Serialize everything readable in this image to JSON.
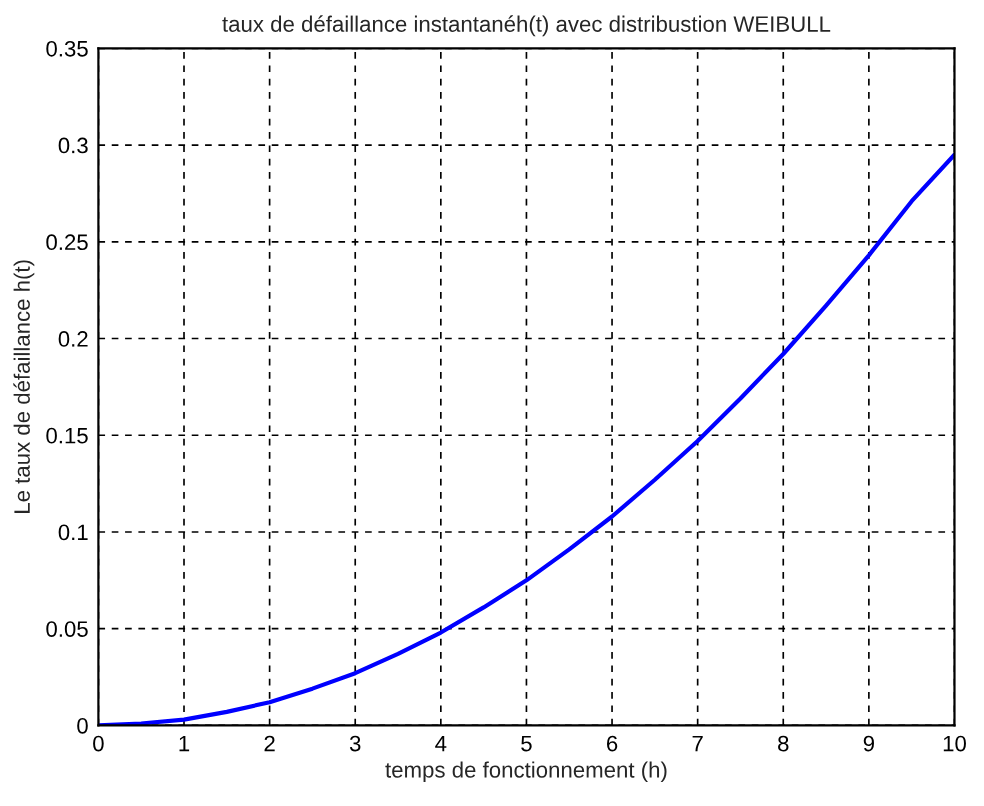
{
  "chart_data": {
    "type": "line",
    "title": "taux de défaillance instantanéh(t) avec distribustion WEIBULL",
    "xlabel": "temps de fonctionnement (h)",
    "ylabel": "Le taux de défaillance h(t)",
    "x": [
      0,
      0.5,
      1,
      1.5,
      2,
      2.5,
      3,
      3.5,
      4,
      4.5,
      5,
      5.5,
      6,
      6.5,
      7,
      7.5,
      8,
      8.5,
      9,
      9.5,
      10
    ],
    "series": [
      {
        "color": "#0000ff",
        "values": [
          0,
          0.001,
          0.003,
          0.007,
          0.012,
          0.019,
          0.027,
          0.037,
          0.048,
          0.061,
          0.075,
          0.091,
          0.108,
          0.127,
          0.147,
          0.169,
          0.192,
          0.217,
          0.243,
          0.271,
          0.295
        ]
      }
    ],
    "xlim": [
      0,
      10
    ],
    "ylim": [
      0,
      0.35
    ],
    "xticks": [
      0,
      1,
      2,
      3,
      4,
      5,
      6,
      7,
      8,
      9,
      10
    ],
    "yticks": [
      0,
      0.05,
      0.1,
      0.15,
      0.2,
      0.25,
      0.3,
      0.35
    ],
    "grid": true,
    "line_style": "solid"
  }
}
